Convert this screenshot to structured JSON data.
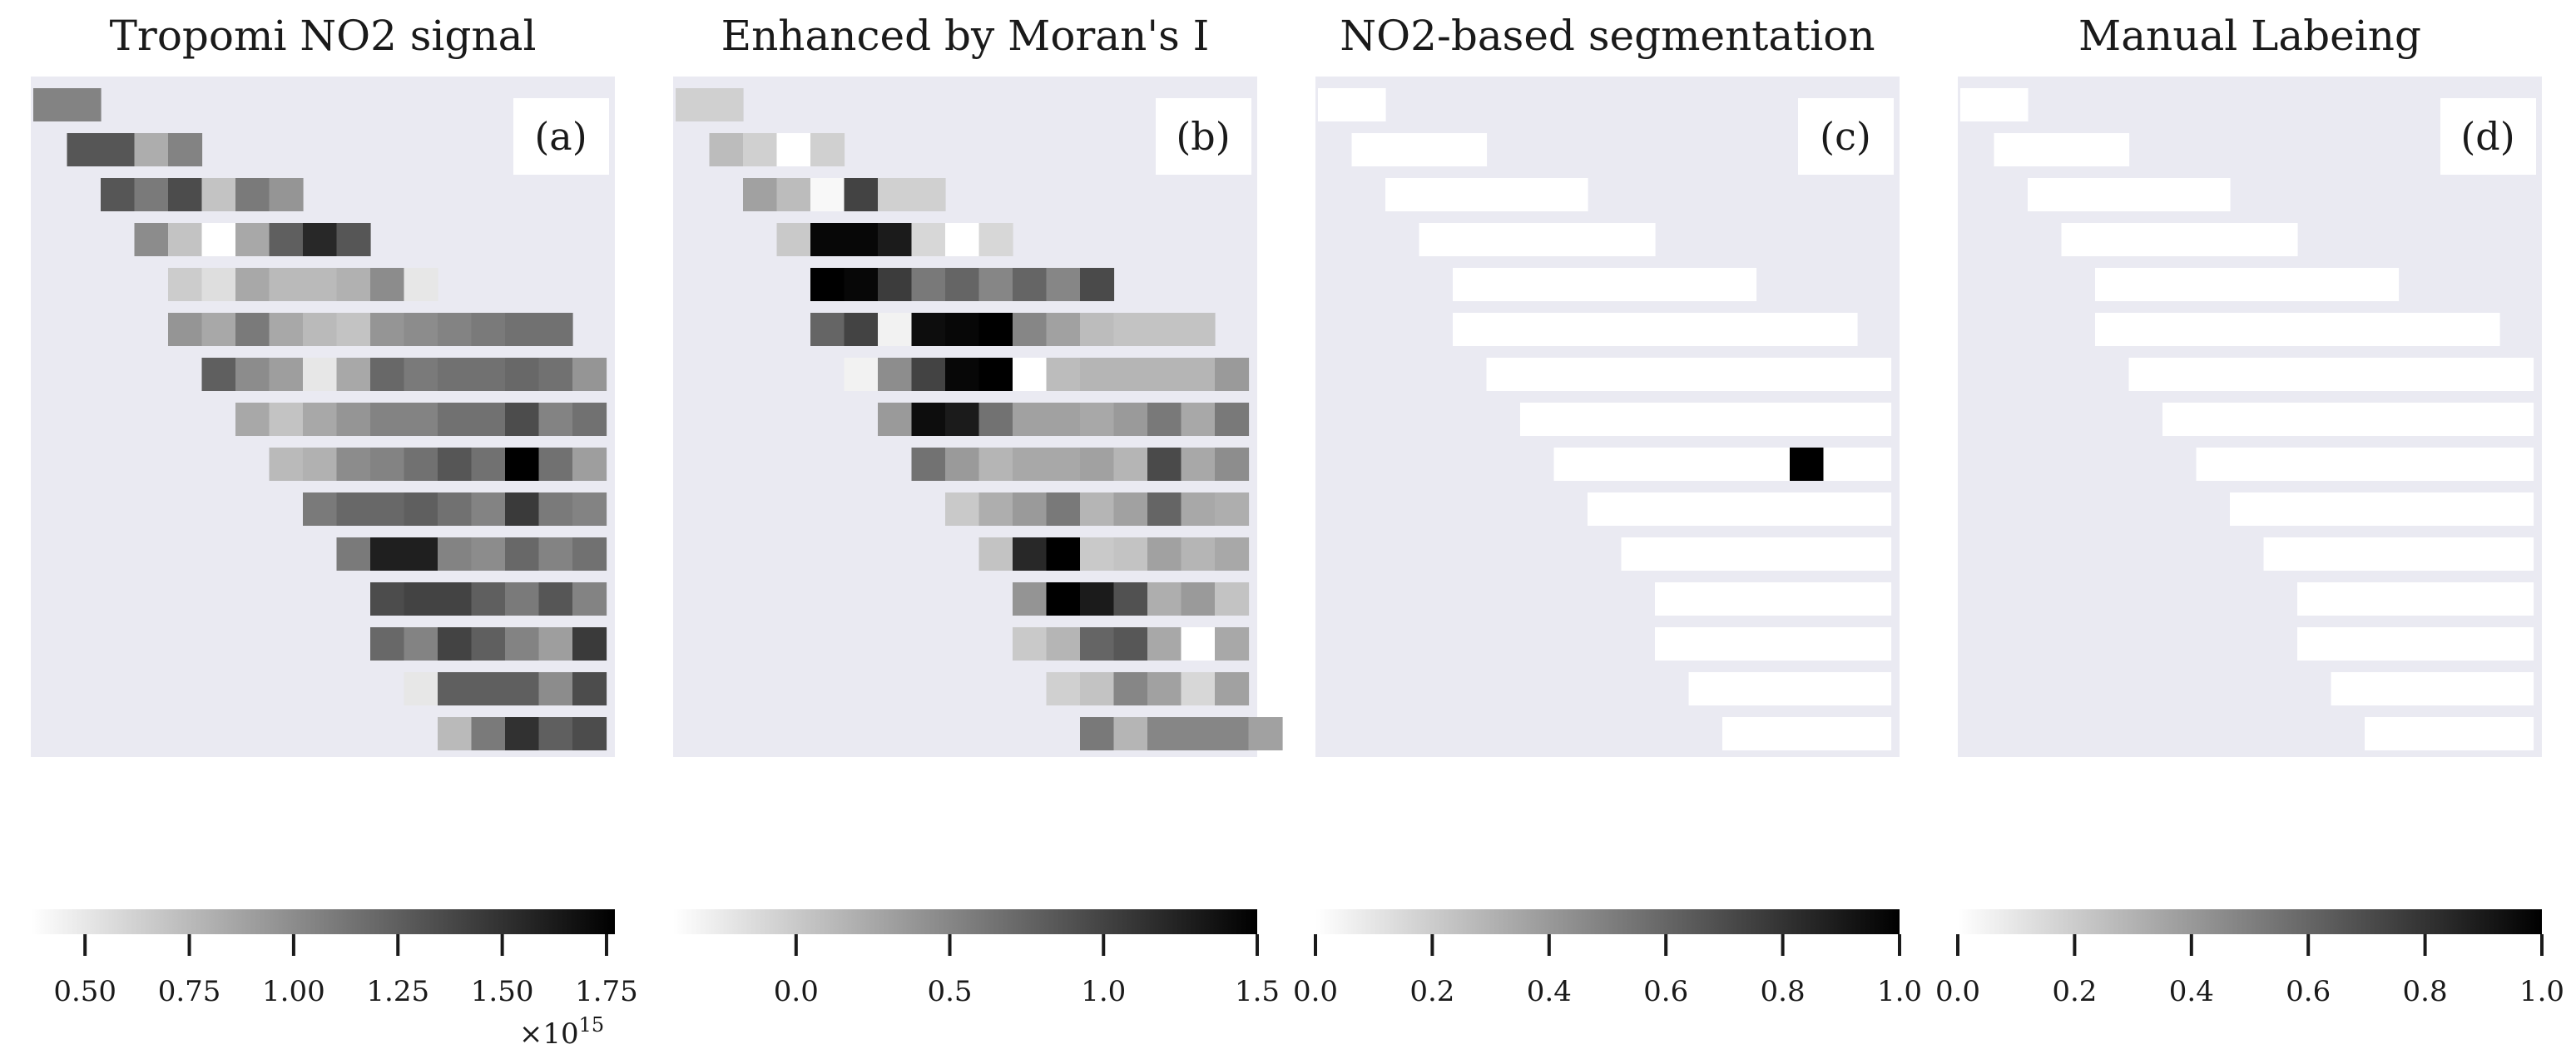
{
  "chart_data": [
    {
      "panel": "a",
      "type": "heatmap",
      "title": "Tropomi NO2 signal",
      "label": "(a)",
      "colorbar": {
        "ticks": [
          "0.50",
          "0.75",
          "1.00",
          "1.25",
          "1.50",
          "1.75"
        ],
        "tick_values": [
          0.5,
          0.75,
          1.0,
          1.25,
          1.5,
          1.75
        ],
        "range": [
          0.37,
          1.77
        ],
        "offset_text": "×10^15"
      },
      "rows": [
        {
          "start": 0,
          "values": [
            1.05,
            1.05
          ]
        },
        {
          "start": 1,
          "values": [
            1.3,
            1.3,
            0.82,
            1.05
          ]
        },
        {
          "start": 2,
          "values": [
            1.3,
            1.1,
            1.35,
            0.7,
            1.1,
            0.95
          ]
        },
        {
          "start": 3,
          "values": [
            1.0,
            0.7,
            0.37,
            0.85,
            1.25,
            1.55,
            1.3
          ]
        },
        {
          "start": 4,
          "values": [
            0.65,
            0.55,
            0.85,
            0.75,
            0.75,
            0.8,
            1.0,
            0.5
          ]
        },
        {
          "start": 4,
          "values": [
            0.95,
            0.85,
            1.1,
            0.85,
            0.75,
            0.7,
            0.95,
            1.0,
            1.05,
            1.1,
            1.15,
            1.15
          ]
        },
        {
          "start": 5,
          "values": [
            1.25,
            1.0,
            0.9,
            0.5,
            0.85,
            1.2,
            1.1,
            1.15,
            1.15,
            1.2,
            1.15,
            0.95
          ]
        },
        {
          "start": 6,
          "values": [
            0.85,
            0.7,
            0.85,
            0.95,
            1.05,
            1.05,
            1.15,
            1.15,
            1.35,
            1.05,
            1.15
          ]
        },
        {
          "start": 7,
          "values": [
            0.75,
            0.8,
            1.0,
            1.05,
            1.15,
            1.3,
            1.15,
            1.77,
            1.15,
            0.9
          ]
        },
        {
          "start": 8,
          "values": [
            1.1,
            1.2,
            1.2,
            1.25,
            1.15,
            1.05,
            1.45,
            1.1,
            1.05
          ]
        },
        {
          "start": 9,
          "values": [
            1.1,
            1.6,
            1.6,
            1.05,
            1.0,
            1.2,
            1.05,
            1.15
          ]
        },
        {
          "start": 10,
          "values": [
            1.35,
            1.4,
            1.4,
            1.25,
            1.1,
            1.3,
            1.05
          ]
        },
        {
          "start": 10,
          "values": [
            1.2,
            1.05,
            1.4,
            1.25,
            1.05,
            0.9,
            1.45
          ]
        },
        {
          "start": 11,
          "values": [
            0.5,
            1.25,
            1.25,
            1.25,
            1.0,
            1.35
          ]
        },
        {
          "start": 12,
          "values": [
            0.75,
            1.1,
            1.5,
            1.25,
            1.35
          ]
        }
      ]
    },
    {
      "panel": "b",
      "type": "heatmap",
      "title": "Enhanced by Moran's I",
      "label": "(b)",
      "colorbar": {
        "ticks": [
          "0.0",
          "0.5",
          "1.0",
          "1.5"
        ],
        "tick_values": [
          0.0,
          0.5,
          1.0,
          1.5
        ],
        "range": [
          -0.4,
          1.5
        ]
      },
      "rows": [
        {
          "start": 0,
          "values": [
            -0.05,
            -0.05
          ]
        },
        {
          "start": 1,
          "values": [
            0.1,
            -0.05,
            -0.4,
            -0.05
          ]
        },
        {
          "start": 2,
          "values": [
            0.3,
            0.1,
            -0.35,
            1.0,
            -0.05,
            -0.05
          ]
        },
        {
          "start": 3,
          "values": [
            0.0,
            1.45,
            1.45,
            1.3,
            -0.1,
            -0.4,
            -0.1
          ]
        },
        {
          "start": 4,
          "values": [
            1.5,
            1.45,
            1.05,
            0.6,
            0.75,
            0.5,
            0.75,
            0.5,
            0.95
          ]
        },
        {
          "start": 4,
          "values": [
            0.75,
            1.0,
            -0.3,
            1.4,
            1.45,
            1.5,
            0.5,
            0.3,
            0.1,
            0.05,
            0.05,
            0.05
          ]
        },
        {
          "start": 5,
          "values": [
            -0.3,
            0.45,
            1.0,
            1.45,
            1.5,
            -0.4,
            0.1,
            0.15,
            0.15,
            0.15,
            0.15,
            0.35
          ]
        },
        {
          "start": 6,
          "values": [
            0.35,
            1.4,
            1.3,
            0.65,
            0.3,
            0.3,
            0.25,
            0.35,
            0.6,
            0.25,
            0.6
          ]
        },
        {
          "start": 7,
          "values": [
            0.65,
            0.35,
            0.15,
            0.25,
            0.25,
            0.3,
            0.15,
            0.95,
            0.25,
            0.45
          ]
        },
        {
          "start": 8,
          "values": [
            0.0,
            0.2,
            0.35,
            0.6,
            0.15,
            0.3,
            0.75,
            0.25,
            0.2
          ]
        },
        {
          "start": 9,
          "values": [
            0.05,
            1.2,
            1.5,
            0.0,
            0.05,
            0.3,
            0.15,
            0.25
          ]
        },
        {
          "start": 10,
          "values": [
            0.4,
            1.5,
            1.3,
            0.9,
            0.2,
            0.35,
            0.05
          ]
        },
        {
          "start": 10,
          "values": [
            0.0,
            0.15,
            0.75,
            0.85,
            0.25,
            -0.4,
            0.25
          ]
        },
        {
          "start": 11,
          "values": [
            -0.05,
            0.05,
            0.5,
            0.3,
            -0.1,
            0.3
          ]
        },
        {
          "start": 12,
          "values": [
            0.6,
            0.15,
            0.5,
            0.5,
            0.5,
            0.3
          ]
        }
      ]
    },
    {
      "panel": "c",
      "type": "heatmap",
      "title": "NO2-based segmentation",
      "label": "(c)",
      "colorbar": {
        "ticks": [
          "0.0",
          "0.2",
          "0.4",
          "0.6",
          "0.8",
          "1.0"
        ],
        "tick_values": [
          0.0,
          0.2,
          0.4,
          0.6,
          0.8,
          1.0
        ],
        "range": [
          0.0,
          1.0
        ]
      },
      "rows": [
        {
          "start": 0,
          "values": [
            0,
            0
          ]
        },
        {
          "start": 1,
          "values": [
            0,
            0,
            0,
            0
          ]
        },
        {
          "start": 2,
          "values": [
            0,
            0,
            0,
            0,
            0,
            0
          ]
        },
        {
          "start": 3,
          "values": [
            0,
            0,
            0,
            0,
            0,
            0,
            0
          ]
        },
        {
          "start": 4,
          "values": [
            0,
            0,
            0,
            0,
            0,
            0,
            0,
            0,
            0
          ]
        },
        {
          "start": 4,
          "values": [
            0,
            0,
            0,
            0,
            0,
            0,
            0,
            0,
            0,
            0,
            0,
            0
          ]
        },
        {
          "start": 5,
          "values": [
            0,
            0,
            0,
            0,
            0,
            0,
            0,
            0,
            0,
            0,
            0,
            0
          ]
        },
        {
          "start": 6,
          "values": [
            0,
            0,
            0,
            0,
            0,
            0,
            0,
            0,
            0,
            0,
            0
          ]
        },
        {
          "start": 7,
          "values": [
            0,
            0,
            0,
            0,
            0,
            0,
            0,
            1,
            0,
            0
          ]
        },
        {
          "start": 8,
          "values": [
            0,
            0,
            0,
            0,
            0,
            0,
            0,
            0,
            0
          ]
        },
        {
          "start": 9,
          "values": [
            0,
            0,
            0,
            0,
            0,
            0,
            0,
            0
          ]
        },
        {
          "start": 10,
          "values": [
            0,
            0,
            0,
            0,
            0,
            0,
            0
          ]
        },
        {
          "start": 10,
          "values": [
            0,
            0,
            0,
            0,
            0,
            0,
            0
          ]
        },
        {
          "start": 11,
          "values": [
            0,
            0,
            0,
            0,
            0,
            0
          ]
        },
        {
          "start": 12,
          "values": [
            0,
            0,
            0,
            0,
            0
          ]
        }
      ]
    },
    {
      "panel": "d",
      "type": "heatmap",
      "title": "Manual Labeing",
      "label": "(d)",
      "colorbar": {
        "ticks": [
          "0.0",
          "0.2",
          "0.4",
          "0.6",
          "0.8",
          "1.0"
        ],
        "tick_values": [
          0.0,
          0.2,
          0.4,
          0.6,
          0.8,
          1.0
        ],
        "range": [
          0.0,
          1.0
        ]
      },
      "rows": [
        {
          "start": 0,
          "values": [
            0,
            0
          ]
        },
        {
          "start": 1,
          "values": [
            0,
            0,
            0,
            0
          ]
        },
        {
          "start": 2,
          "values": [
            0,
            0,
            0,
            0,
            0,
            0
          ]
        },
        {
          "start": 3,
          "values": [
            0,
            0,
            0,
            0,
            0,
            0,
            0
          ]
        },
        {
          "start": 4,
          "values": [
            0,
            0,
            0,
            0,
            0,
            0,
            0,
            0,
            0
          ]
        },
        {
          "start": 4,
          "values": [
            0,
            0,
            0,
            0,
            0,
            0,
            0,
            0,
            0,
            0,
            0,
            0
          ]
        },
        {
          "start": 5,
          "values": [
            0,
            0,
            0,
            0,
            0,
            0,
            0,
            0,
            0,
            0,
            0,
            0
          ]
        },
        {
          "start": 6,
          "values": [
            0,
            0,
            0,
            0,
            0,
            0,
            0,
            0,
            0,
            0,
            0
          ]
        },
        {
          "start": 7,
          "values": [
            0,
            0,
            0,
            0,
            0,
            0,
            0,
            0,
            0,
            0
          ]
        },
        {
          "start": 8,
          "values": [
            0,
            0,
            0,
            0,
            0,
            0,
            0,
            0,
            0
          ]
        },
        {
          "start": 9,
          "values": [
            0,
            0,
            0,
            0,
            0,
            0,
            0,
            0
          ]
        },
        {
          "start": 10,
          "values": [
            0,
            0,
            0,
            0,
            0,
            0,
            0
          ]
        },
        {
          "start": 10,
          "values": [
            0,
            0,
            0,
            0,
            0,
            0,
            0
          ]
        },
        {
          "start": 11,
          "values": [
            0,
            0,
            0,
            0,
            0,
            0
          ]
        },
        {
          "start": 12,
          "values": [
            0,
            0,
            0,
            0,
            0
          ]
        }
      ]
    }
  ],
  "colors": {
    "axes_background": "#eaeaf2",
    "colormap_low": "#ffffff",
    "colormap_high": "#000000"
  }
}
